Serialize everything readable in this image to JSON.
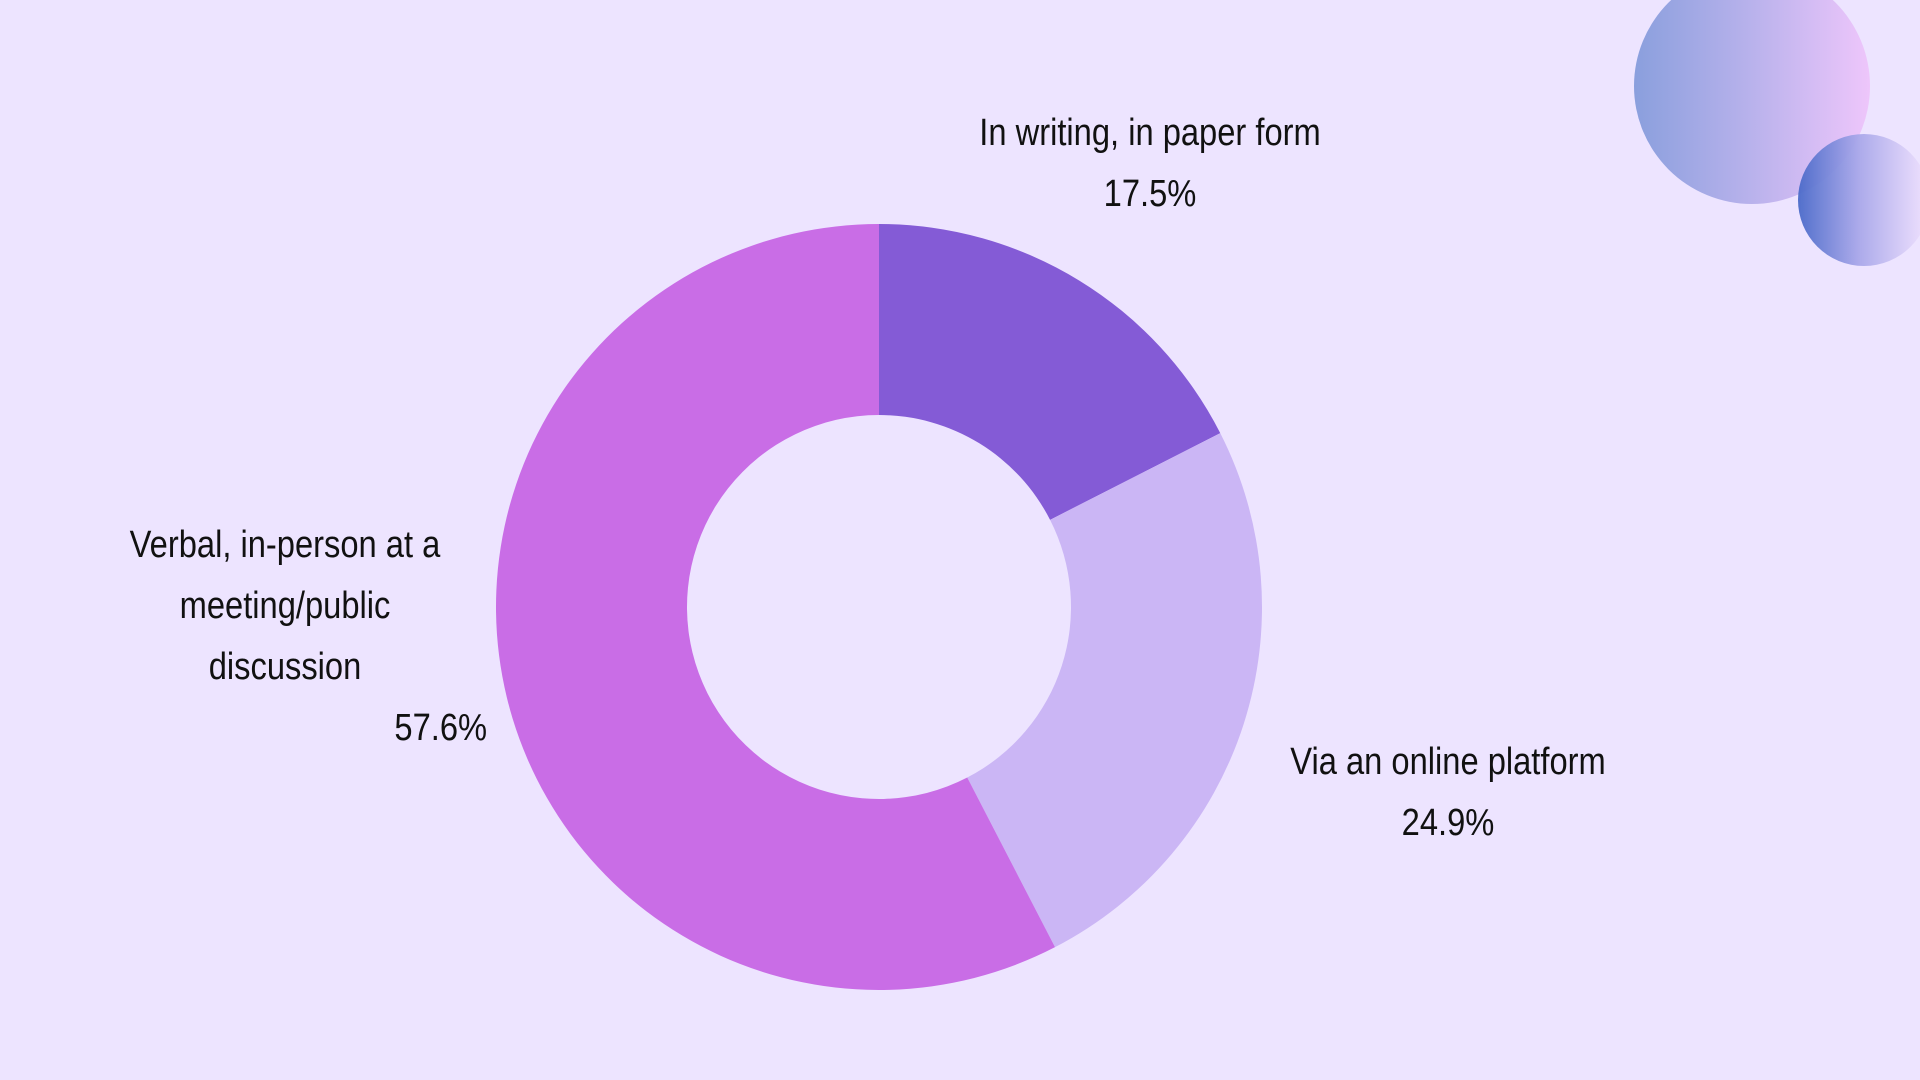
{
  "chart_data": {
    "type": "pie",
    "style": "donut",
    "slices": [
      {
        "label": "In writing, in paper form",
        "value": 17.5,
        "display": "17.5%",
        "color": "#845bd6"
      },
      {
        "label": "Via an online platform",
        "value": 24.9,
        "display": "24.9%",
        "color": "#cbb6f5"
      },
      {
        "label": "Verbal, in-person at a meeting/public discussion",
        "value": 57.6,
        "display": "57.6%",
        "color": "#c96de6"
      }
    ],
    "title": "",
    "legend": "none",
    "labels_position": "outside"
  },
  "theme": {
    "background": "#ede4ff",
    "text_color": "#111111"
  }
}
